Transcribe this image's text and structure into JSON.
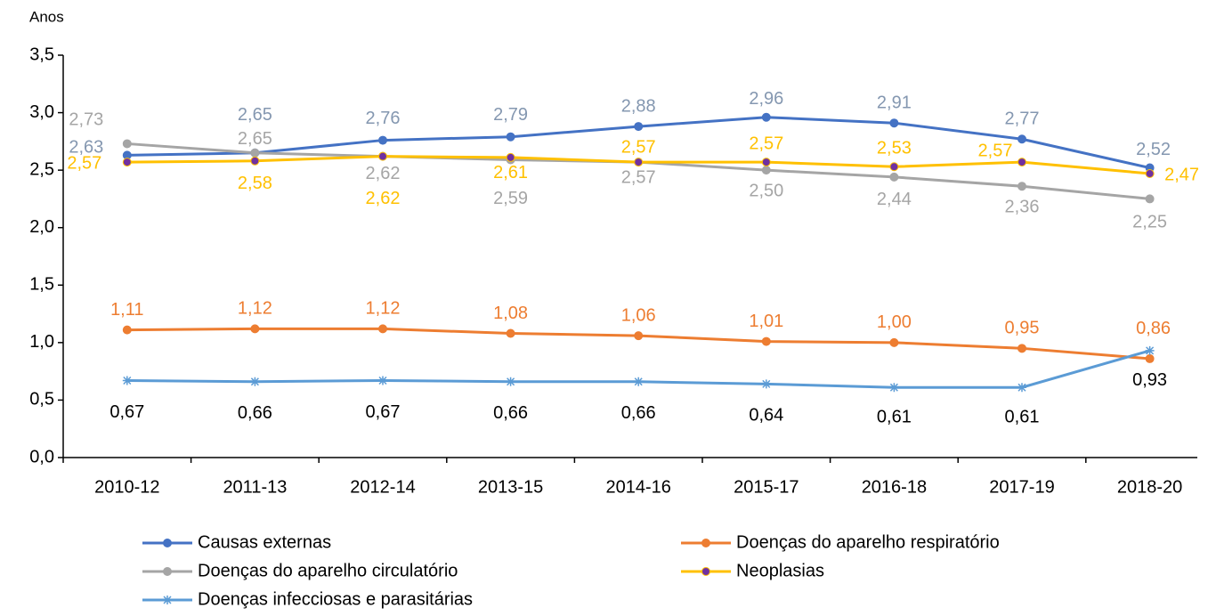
{
  "chart_data": {
    "type": "line",
    "y_label": "Anos",
    "categories": [
      "2010-12",
      "2011-13",
      "2012-14",
      "2013-15",
      "2014-16",
      "2015-17",
      "2016-18",
      "2017-19",
      "2018-20"
    ],
    "ylim": [
      0,
      3.5
    ],
    "yticks": [
      {
        "value": 0,
        "label": "0,0"
      },
      {
        "value": 0.5,
        "label": "0,5"
      },
      {
        "value": 1,
        "label": "1,0"
      },
      {
        "value": 1.5,
        "label": "1,5"
      },
      {
        "value": 2,
        "label": "2,0"
      },
      {
        "value": 2.5,
        "label": "2,5"
      },
      {
        "value": 3,
        "label": "3,0"
      },
      {
        "value": 3.5,
        "label": "3,5"
      }
    ],
    "series": [
      {
        "name": "Causas externas",
        "color": "#4472c4",
        "label_color": "#8497b0",
        "marker": "circle",
        "values": [
          2.63,
          2.65,
          2.76,
          2.79,
          2.88,
          2.96,
          2.91,
          2.77,
          2.52
        ],
        "value_labels": [
          "2,63",
          "2,65",
          "2,76",
          "2,79",
          "2,88",
          "2,96",
          "2,91",
          "2,77",
          "2,52"
        ]
      },
      {
        "name": "Doenças do aparelho respiratório",
        "color": "#ed7d31",
        "label_color": "#ed7d31",
        "marker": "circle",
        "values": [
          1.11,
          1.12,
          1.12,
          1.08,
          1.06,
          1.01,
          1.0,
          0.95,
          0.86
        ],
        "value_labels": [
          "1,11",
          "1,12",
          "1,12",
          "1,08",
          "1,06",
          "1,01",
          "1,00",
          "0,95",
          "0,86"
        ]
      },
      {
        "name": "Doenças do aparelho circulatório",
        "color": "#a5a5a5",
        "label_color": "#a5a5a5",
        "marker": "circle",
        "values": [
          2.73,
          2.65,
          2.62,
          2.59,
          2.57,
          2.5,
          2.44,
          2.36,
          2.25
        ],
        "value_labels": [
          "2,73",
          "2,65",
          "2,62",
          "2,59",
          "2,57",
          "2,50",
          "2,44",
          "2,36",
          "2,25"
        ]
      },
      {
        "name": "Neoplasias",
        "color": "#ffc000",
        "label_color": "#ffc000",
        "marker": "dot",
        "marker_color": "#7030a0",
        "values": [
          2.57,
          2.58,
          2.62,
          2.61,
          2.57,
          2.57,
          2.53,
          2.57,
          2.47
        ],
        "value_labels": [
          "2,57",
          "2,58",
          "2,62",
          "2,61",
          "2,57",
          "2,57",
          "2,53",
          "2,57",
          "2,47"
        ]
      },
      {
        "name": "Doenças infecciosas e parasitárias",
        "color": "#5b9bd5",
        "label_color": "#000000",
        "marker": "star",
        "values": [
          0.67,
          0.66,
          0.67,
          0.66,
          0.66,
          0.64,
          0.61,
          0.61,
          0.93
        ],
        "value_labels": [
          "0,67",
          "0,66",
          "0,67",
          "0,66",
          "0,66",
          "0,64",
          "0,61",
          "0,61",
          "0,93"
        ]
      }
    ]
  }
}
